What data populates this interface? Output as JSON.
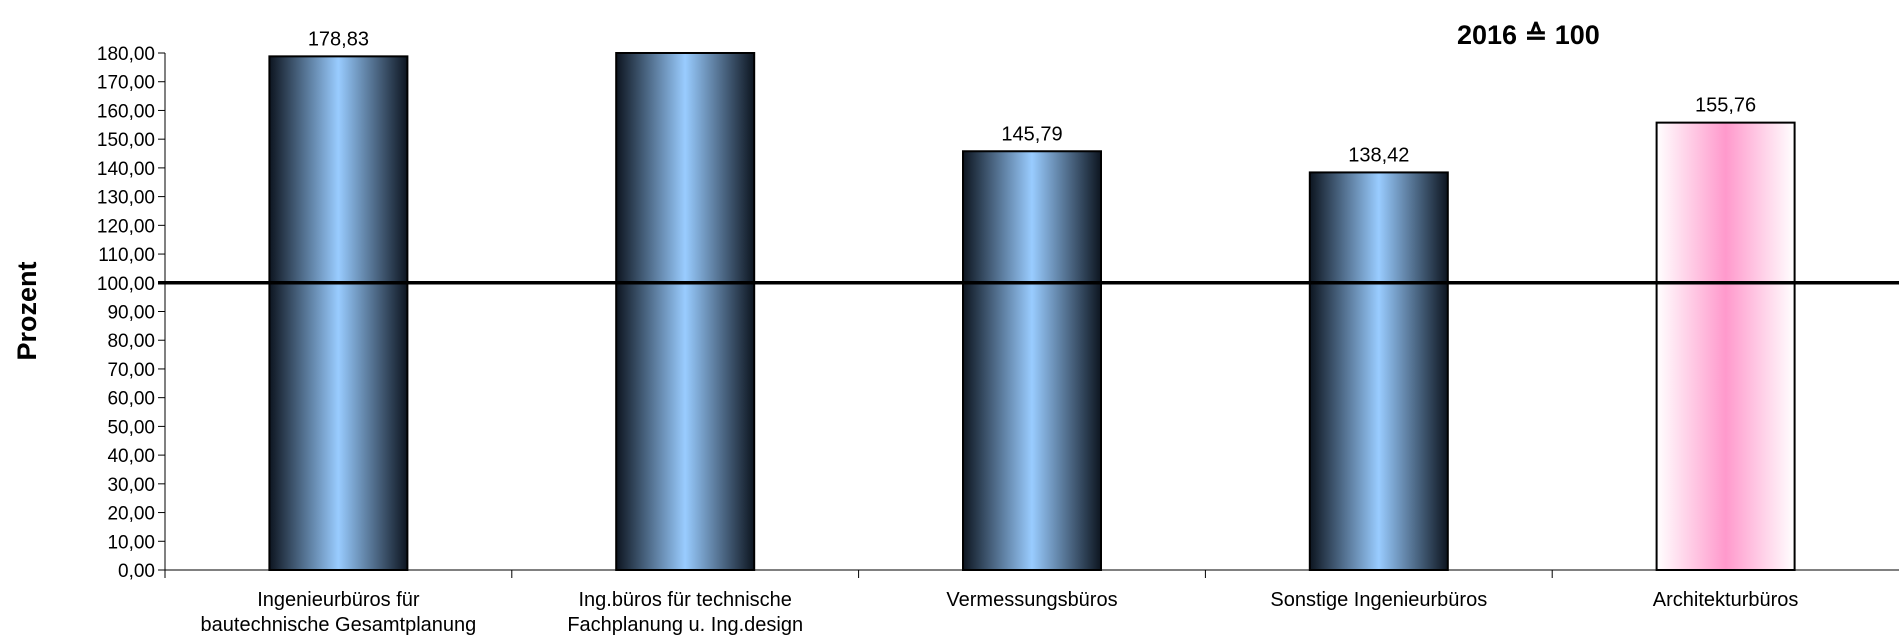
{
  "chart_data": {
    "type": "bar",
    "title": "",
    "annotation": "2016 ≙ 100",
    "xlabel": "",
    "ylabel": "Prozent",
    "ylim": [
      0,
      180
    ],
    "ytick_step": 10,
    "reference_line": 100,
    "categories": [
      [
        "Ingenieurbüros für",
        "bautechnische Gesamtplanung"
      ],
      [
        "Ing.büros für technische",
        "Fachplanung u. Ing.design"
      ],
      [
        "Vermessungsbüros"
      ],
      [
        "Sonstige Ingenieurbüros"
      ],
      [
        "Architekturbüros"
      ]
    ],
    "values": [
      178.83,
      180.0,
      145.79,
      138.42,
      155.76
    ],
    "data_labels": [
      "178,83",
      "",
      "145,79",
      "138,42",
      "155,76"
    ],
    "bar_styles": [
      "blue",
      "blue",
      "blue",
      "blue",
      "pink"
    ],
    "colors": {
      "blue_center": "#99ccff",
      "blue_edge": "#0d1520",
      "pink_center": "#ff99cc",
      "pink_edge": "#ffffff",
      "axis": "#000000"
    },
    "grid": false,
    "legend": "none"
  }
}
